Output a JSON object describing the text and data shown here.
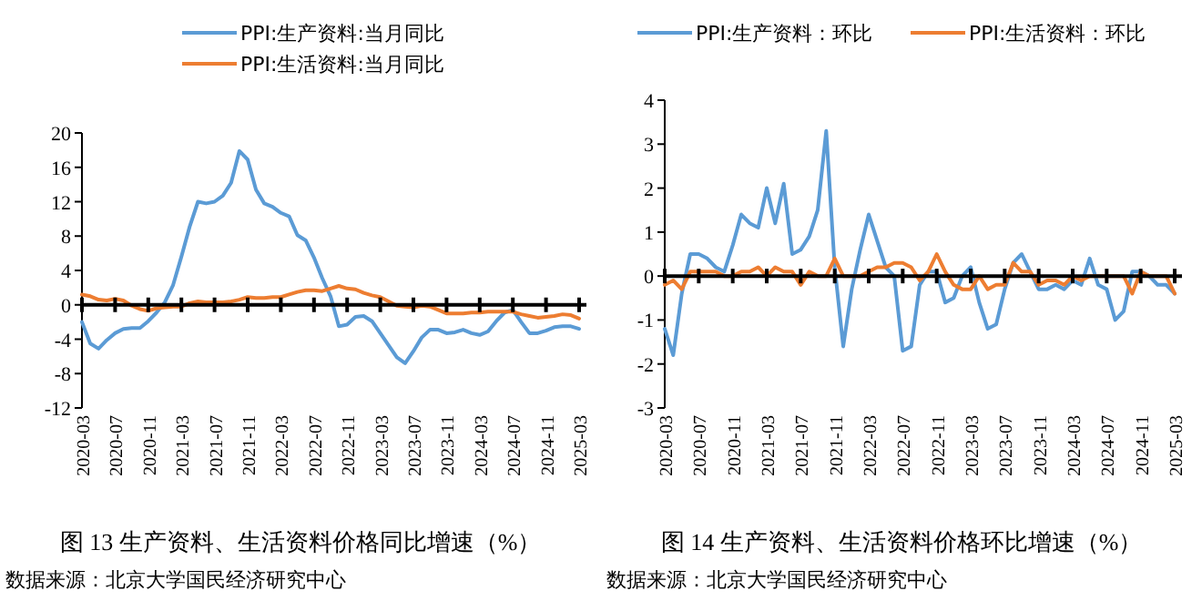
{
  "chart_data": [
    {
      "type": "line",
      "title": "图 13  生产资料、生活资料价格同比增速（%）",
      "annotations": [
        "数据来源：北京大学国民经济研究中心"
      ],
      "categories": [
        "2020-03",
        null,
        null,
        null,
        "2020-07",
        null,
        null,
        null,
        "2020-11",
        null,
        null,
        null,
        "2021-03",
        null,
        null,
        null,
        "2021-07",
        null,
        null,
        null,
        "2021-11",
        null,
        null,
        null,
        "2022-03",
        null,
        null,
        null,
        "2022-07",
        null,
        null,
        null,
        "2022-11",
        null,
        null,
        null,
        "2023-03",
        null,
        null,
        null,
        "2023-07",
        null,
        null,
        null,
        "2023-11",
        null,
        null,
        null,
        "2024-03",
        null,
        null,
        null,
        "2024-07",
        null,
        null,
        null,
        "2024-11",
        null,
        null,
        null,
        "2025-03"
      ],
      "series": [
        {
          "name": "PPI:生产资料:当月同比",
          "color": "#5b9bd5",
          "values": [
            -2.0,
            -4.5,
            -5.1,
            -4.1,
            -3.3,
            -2.8,
            -2.7,
            -2.7,
            -1.9,
            -0.9,
            0.3,
            2.3,
            5.6,
            9.1,
            12.0,
            11.8,
            12.0,
            12.7,
            14.2,
            17.9,
            16.9,
            13.4,
            11.8,
            11.4,
            10.7,
            10.3,
            8.1,
            7.5,
            5.5,
            3.1,
            1.0,
            -2.5,
            -2.3,
            -1.4,
            -1.3,
            -1.9,
            -3.3,
            -4.7,
            -6.1,
            -6.8,
            -5.4,
            -3.8,
            -2.9,
            -2.9,
            -3.3,
            -3.2,
            -2.9,
            -3.3,
            -3.5,
            -3.1,
            -1.9,
            -0.9,
            -0.6,
            -2.0,
            -3.3,
            -3.3,
            -3.0,
            -2.6,
            -2.5,
            -2.5,
            -2.8
          ]
        },
        {
          "name": "PPI:生活资料:当月同比",
          "color": "#ed7d31",
          "values": [
            1.2,
            1.0,
            0.6,
            0.5,
            0.7,
            0.5,
            -0.1,
            -0.5,
            -0.7,
            -0.4,
            -0.3,
            -0.2,
            -0.2,
            0.2,
            0.4,
            0.3,
            0.3,
            0.3,
            0.4,
            0.6,
            0.9,
            0.8,
            0.8,
            0.9,
            0.9,
            1.2,
            1.5,
            1.7,
            1.7,
            1.6,
            1.9,
            2.2,
            1.9,
            1.8,
            1.4,
            1.1,
            0.9,
            0.4,
            -0.1,
            -0.2,
            -0.3,
            -0.1,
            -0.2,
            -0.6,
            -1.0,
            -1.0,
            -1.0,
            -0.9,
            -0.9,
            -0.8,
            -0.8,
            -0.8,
            -0.8,
            -1.1,
            -1.3,
            -1.5,
            -1.4,
            -1.3,
            -1.1,
            -1.2,
            -1.6
          ]
        }
      ],
      "ylim": [
        -12,
        20
      ],
      "yticks": [
        -12,
        -8,
        -4,
        0,
        4,
        8,
        12,
        16,
        20
      ],
      "legend": "top",
      "marker": "none",
      "line_style": "solid"
    },
    {
      "type": "line",
      "title": "图 14  生产资料、生活资料价格环比增速（%）",
      "annotations": [
        "数据来源：北京大学国民经济研究中心"
      ],
      "categories": [
        "2020-03",
        null,
        null,
        null,
        "2020-07",
        null,
        null,
        null,
        "2020-11",
        null,
        null,
        null,
        "2021-03",
        null,
        null,
        null,
        "2021-07",
        null,
        null,
        null,
        "2021-11",
        null,
        null,
        null,
        "2022-03",
        null,
        null,
        null,
        "2022-07",
        null,
        null,
        null,
        "2022-11",
        null,
        null,
        null,
        "2023-03",
        null,
        null,
        null,
        "2023-07",
        null,
        null,
        null,
        "2023-11",
        null,
        null,
        null,
        "2024-03",
        null,
        null,
        null,
        "2024-07",
        null,
        null,
        null,
        "2024-11",
        null,
        null,
        null,
        "2025-03"
      ],
      "series": [
        {
          "name": "PPI:生产资料：环比",
          "color": "#5b9bd5",
          "values": [
            -1.2,
            -1.8,
            -0.4,
            0.5,
            0.5,
            0.4,
            0.2,
            0.1,
            0.7,
            1.4,
            1.2,
            1.1,
            2.0,
            1.2,
            2.1,
            0.5,
            0.6,
            0.9,
            1.5,
            3.3,
            0.2,
            -1.6,
            -0.3,
            0.6,
            1.4,
            0.8,
            0.2,
            0.0,
            -1.7,
            -1.6,
            -0.2,
            0.1,
            0.1,
            -0.6,
            -0.5,
            0.0,
            0.2,
            -0.6,
            -1.2,
            -1.1,
            -0.3,
            0.3,
            0.5,
            0.1,
            -0.3,
            -0.3,
            -0.2,
            -0.3,
            -0.1,
            -0.2,
            0.4,
            -0.2,
            -0.3,
            -1.0,
            -0.8,
            0.1,
            0.1,
            0.0,
            -0.2,
            -0.2,
            -0.4
          ]
        },
        {
          "name": "PPI:生活资料：环比",
          "color": "#ed7d31",
          "values": [
            -0.2,
            -0.1,
            -0.3,
            0.1,
            0.1,
            0.1,
            0.1,
            0.0,
            0.0,
            0.1,
            0.1,
            0.2,
            0.0,
            0.2,
            0.1,
            0.1,
            -0.2,
            0.1,
            0.0,
            0.0,
            0.4,
            0.0,
            0.0,
            0.0,
            0.1,
            0.2,
            0.2,
            0.3,
            0.3,
            0.2,
            -0.1,
            0.1,
            0.5,
            0.1,
            -0.2,
            -0.3,
            -0.3,
            0.0,
            -0.3,
            -0.2,
            -0.2,
            0.3,
            0.1,
            0.1,
            -0.2,
            -0.1,
            -0.1,
            -0.2,
            0.0,
            -0.1,
            0.0,
            0.0,
            0.0,
            0.0,
            0.0,
            -0.4,
            0.1,
            0.0,
            0.0,
            0.0,
            -0.4
          ]
        }
      ],
      "ylim": [
        -3,
        4
      ],
      "yticks": [
        -3,
        -2,
        -1,
        0,
        1,
        2,
        3,
        4
      ],
      "legend": "top",
      "marker": "none",
      "line_style": "solid"
    }
  ]
}
